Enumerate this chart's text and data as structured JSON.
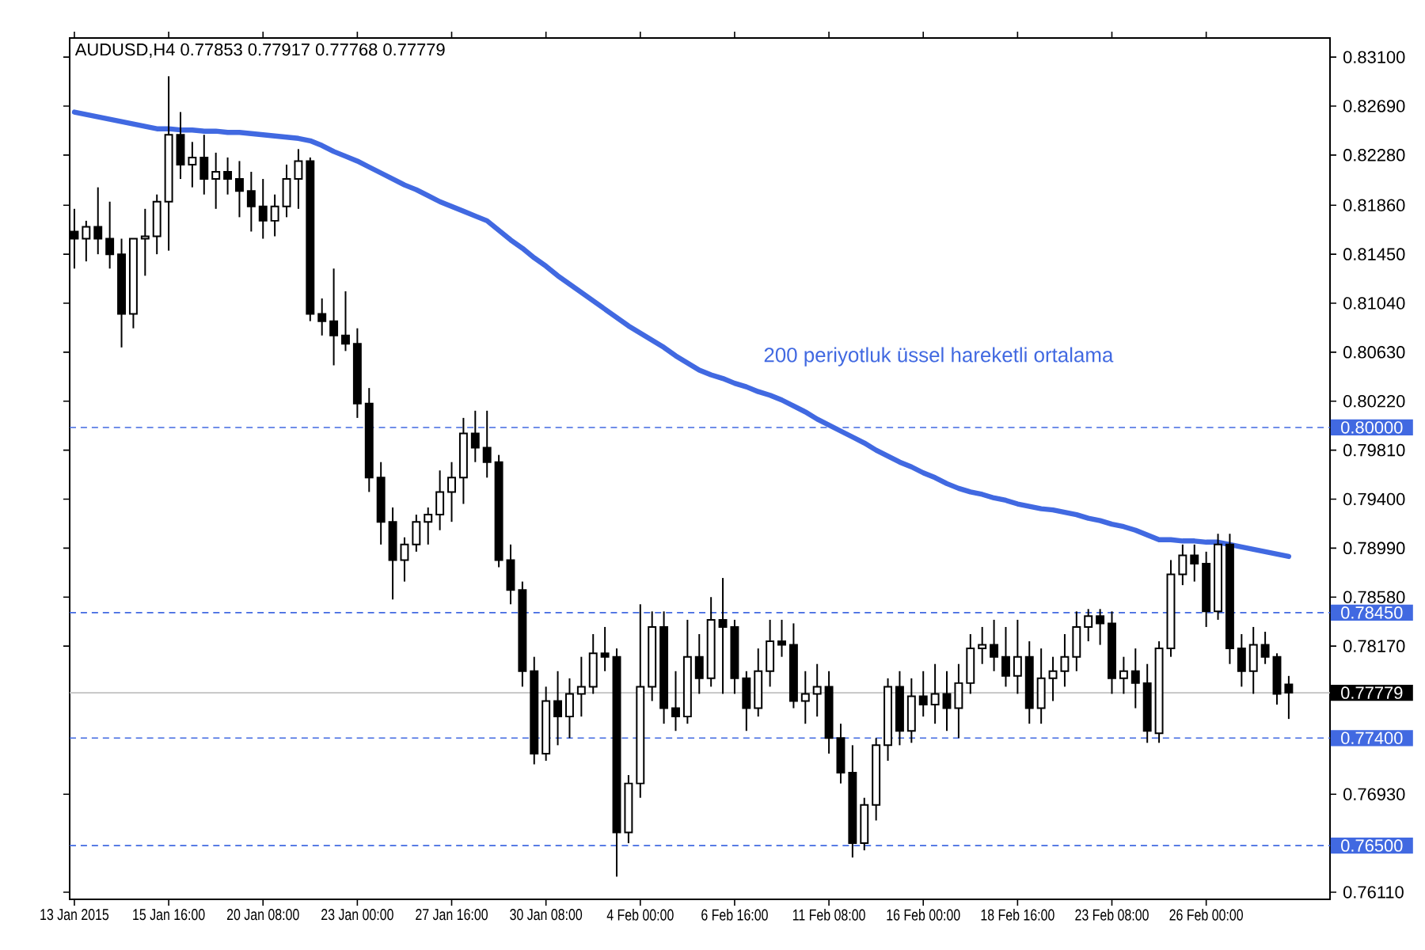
{
  "chart_data": {
    "type": "candlestick",
    "title": "AUDUSD,H4 0.77853 0.77917 0.77768 0.77779",
    "categories": [
      "13 Jan 2015",
      null,
      null,
      null,
      null,
      null,
      null,
      null,
      "15 Jan 16:00",
      null,
      null,
      null,
      null,
      null,
      null,
      null,
      "20 Jan 08:00",
      null,
      null,
      null,
      null,
      null,
      null,
      null,
      "23 Jan 00:00",
      null,
      null,
      null,
      null,
      null,
      null,
      null,
      "27 Jan 16:00",
      null,
      null,
      null,
      null,
      null,
      null,
      null,
      "30 Jan 08:00",
      null,
      null,
      null,
      null,
      null,
      null,
      null,
      "4 Feb 00:00",
      null,
      null,
      null,
      null,
      null,
      null,
      null,
      "6 Feb 16:00",
      null,
      null,
      null,
      null,
      null,
      null,
      null,
      "11 Feb 08:00",
      null,
      null,
      null,
      null,
      null,
      null,
      null,
      "16 Feb 00:00",
      null,
      null,
      null,
      null,
      null,
      null,
      null,
      "18 Feb 16:00",
      null,
      null,
      null,
      null,
      null,
      null,
      null,
      "23 Feb 08:00",
      null,
      null,
      null,
      null,
      null,
      null,
      null,
      "26 Feb 00:00",
      null,
      null,
      null,
      null,
      null,
      null,
      null
    ],
    "ohlc": [
      [
        0.8164,
        0.8183,
        0.8133,
        0.8158
      ],
      [
        0.8158,
        0.8173,
        0.8139,
        0.8168
      ],
      [
        0.8168,
        0.8201,
        0.8145,
        0.8158
      ],
      [
        0.8158,
        0.8189,
        0.8133,
        0.8145
      ],
      [
        0.8145,
        0.8158,
        0.8067,
        0.8095
      ],
      [
        0.8095,
        0.8158,
        0.8083,
        0.8158
      ],
      [
        0.8158,
        0.8183,
        0.8127,
        0.816
      ],
      [
        0.816,
        0.8195,
        0.8145,
        0.8189
      ],
      [
        0.8189,
        0.8294,
        0.8148,
        0.8245
      ],
      [
        0.8245,
        0.8264,
        0.8208,
        0.822
      ],
      [
        0.822,
        0.8239,
        0.8201,
        0.8226
      ],
      [
        0.8226,
        0.8245,
        0.8195,
        0.8208
      ],
      [
        0.8208,
        0.823,
        0.8183,
        0.8214
      ],
      [
        0.8214,
        0.8226,
        0.8195,
        0.8208
      ],
      [
        0.8208,
        0.8223,
        0.8176,
        0.8198
      ],
      [
        0.8198,
        0.8214,
        0.8164,
        0.8185
      ],
      [
        0.8185,
        0.8208,
        0.8158,
        0.8173
      ],
      [
        0.8173,
        0.8195,
        0.816,
        0.8185
      ],
      [
        0.8185,
        0.822,
        0.8176,
        0.8208
      ],
      [
        0.8208,
        0.8233,
        0.8183,
        0.8223
      ],
      [
        0.8223,
        0.8226,
        0.8089,
        0.8095
      ],
      [
        0.8095,
        0.8108,
        0.8077,
        0.8089
      ],
      [
        0.8089,
        0.8133,
        0.8052,
        0.8077
      ],
      [
        0.8077,
        0.8114,
        0.8064,
        0.807
      ],
      [
        0.807,
        0.8083,
        0.8008,
        0.802
      ],
      [
        0.802,
        0.8033,
        0.7946,
        0.7958
      ],
      [
        0.7958,
        0.7971,
        0.7902,
        0.7921
      ],
      [
        0.7921,
        0.7933,
        0.7856,
        0.7889
      ],
      [
        0.7889,
        0.7908,
        0.7871,
        0.7902
      ],
      [
        0.7902,
        0.7927,
        0.7896,
        0.7921
      ],
      [
        0.7921,
        0.7933,
        0.7902,
        0.7927
      ],
      [
        0.7927,
        0.7964,
        0.7914,
        0.7946
      ],
      [
        0.7946,
        0.7971,
        0.7921,
        0.7958
      ],
      [
        0.7958,
        0.8008,
        0.7936,
        0.7995
      ],
      [
        0.7995,
        0.8014,
        0.7971,
        0.7983
      ],
      [
        0.7983,
        0.8014,
        0.7958,
        0.7971
      ],
      [
        0.7971,
        0.7977,
        0.7883,
        0.7889
      ],
      [
        0.7889,
        0.7902,
        0.7852,
        0.7864
      ],
      [
        0.7864,
        0.7871,
        0.7783,
        0.7796
      ],
      [
        0.7796,
        0.7808,
        0.7718,
        0.7727
      ],
      [
        0.7727,
        0.7783,
        0.7721,
        0.7771
      ],
      [
        0.7771,
        0.7796,
        0.7734,
        0.7758
      ],
      [
        0.7758,
        0.779,
        0.774,
        0.7777
      ],
      [
        0.7777,
        0.7808,
        0.7758,
        0.7783
      ],
      [
        0.7783,
        0.7827,
        0.7777,
        0.7811
      ],
      [
        0.7811,
        0.7833,
        0.7796,
        0.7808
      ],
      [
        0.7808,
        0.7815,
        0.7624,
        0.7661
      ],
      [
        0.7661,
        0.7709,
        0.7652,
        0.7702
      ],
      [
        0.7702,
        0.7852,
        0.769,
        0.7783
      ],
      [
        0.7783,
        0.7846,
        0.7771,
        0.7833
      ],
      [
        0.7833,
        0.7846,
        0.7752,
        0.7765
      ],
      [
        0.7765,
        0.7796,
        0.7746,
        0.7758
      ],
      [
        0.7758,
        0.7839,
        0.7752,
        0.7808
      ],
      [
        0.7808,
        0.7827,
        0.7777,
        0.779
      ],
      [
        0.779,
        0.7858,
        0.7783,
        0.7839
      ],
      [
        0.7839,
        0.7874,
        0.7777,
        0.7833
      ],
      [
        0.7833,
        0.7839,
        0.7777,
        0.779
      ],
      [
        0.779,
        0.7796,
        0.7746,
        0.7765
      ],
      [
        0.7765,
        0.7815,
        0.7758,
        0.7796
      ],
      [
        0.7796,
        0.7839,
        0.7783,
        0.7821
      ],
      [
        0.7821,
        0.7839,
        0.7808,
        0.7818
      ],
      [
        0.7818,
        0.7836,
        0.7765,
        0.7771
      ],
      [
        0.7771,
        0.7796,
        0.7752,
        0.7777
      ],
      [
        0.7777,
        0.7802,
        0.7758,
        0.7783
      ],
      [
        0.7783,
        0.7796,
        0.7727,
        0.774
      ],
      [
        0.774,
        0.7752,
        0.7702,
        0.7711
      ],
      [
        0.7711,
        0.7734,
        0.764,
        0.7652
      ],
      [
        0.7652,
        0.769,
        0.7646,
        0.7684
      ],
      [
        0.7684,
        0.774,
        0.7671,
        0.7734
      ],
      [
        0.7734,
        0.779,
        0.7721,
        0.7783
      ],
      [
        0.7783,
        0.7796,
        0.7734,
        0.7746
      ],
      [
        0.7746,
        0.779,
        0.7736,
        0.7775
      ],
      [
        0.7775,
        0.7796,
        0.7758,
        0.7768
      ],
      [
        0.7768,
        0.7802,
        0.7752,
        0.7777
      ],
      [
        0.7777,
        0.7796,
        0.7746,
        0.7765
      ],
      [
        0.7765,
        0.7802,
        0.774,
        0.7786
      ],
      [
        0.7786,
        0.7827,
        0.7777,
        0.7815
      ],
      [
        0.7815,
        0.7833,
        0.7802,
        0.7818
      ],
      [
        0.7818,
        0.7839,
        0.7796,
        0.7808
      ],
      [
        0.7808,
        0.7833,
        0.7783,
        0.7792
      ],
      [
        0.7792,
        0.7839,
        0.7777,
        0.7808
      ],
      [
        0.7808,
        0.7821,
        0.7752,
        0.7765
      ],
      [
        0.7765,
        0.7815,
        0.7752,
        0.779
      ],
      [
        0.779,
        0.7808,
        0.7771,
        0.7796
      ],
      [
        0.7796,
        0.7827,
        0.7783,
        0.7808
      ],
      [
        0.7808,
        0.7846,
        0.7796,
        0.7833
      ],
      [
        0.7833,
        0.7848,
        0.7821,
        0.7842
      ],
      [
        0.7842,
        0.7848,
        0.7818,
        0.7836
      ],
      [
        0.7836,
        0.7846,
        0.7777,
        0.779
      ],
      [
        0.779,
        0.7808,
        0.7777,
        0.7796
      ],
      [
        0.7796,
        0.7815,
        0.7765,
        0.7786
      ],
      [
        0.7786,
        0.7802,
        0.7736,
        0.7746
      ],
      [
        0.7744,
        0.7821,
        0.7736,
        0.7815
      ],
      [
        0.7815,
        0.7889,
        0.7808,
        0.7877
      ],
      [
        0.7877,
        0.7902,
        0.7868,
        0.7893
      ],
      [
        0.7893,
        0.7902,
        0.7871,
        0.7886
      ],
      [
        0.7886,
        0.7896,
        0.7833,
        0.7846
      ],
      [
        0.7846,
        0.7911,
        0.7839,
        0.7902
      ],
      [
        0.7902,
        0.7911,
        0.7802,
        0.7815
      ],
      [
        0.7815,
        0.7827,
        0.7783,
        0.7796
      ],
      [
        0.7796,
        0.7833,
        0.7777,
        0.7818
      ],
      [
        0.7818,
        0.7829,
        0.7802,
        0.7808
      ],
      [
        0.7808,
        0.7811,
        0.7768,
        0.7777
      ],
      [
        0.7785,
        0.7792,
        0.7756,
        0.7778
      ]
    ],
    "series": [
      {
        "type": "line",
        "name": "200 periyotluk üssel hareketli ortalama",
        "color": "#4169e1",
        "line_style": "solid",
        "values": [
          0.8264,
          0.8262,
          0.826,
          0.8258,
          0.8256,
          0.8254,
          0.8252,
          0.825,
          0.825,
          0.8249,
          0.8249,
          0.8248,
          0.8248,
          0.8247,
          0.8247,
          0.8246,
          0.8245,
          0.8244,
          0.8243,
          0.8242,
          0.824,
          0.8236,
          0.8231,
          0.8227,
          0.8223,
          0.8218,
          0.8213,
          0.8208,
          0.8203,
          0.8199,
          0.8194,
          0.8189,
          0.8185,
          0.8181,
          0.8177,
          0.8173,
          0.8165,
          0.8157,
          0.815,
          0.8142,
          0.8135,
          0.8127,
          0.812,
          0.8113,
          0.8106,
          0.8099,
          0.8092,
          0.8085,
          0.8079,
          0.8073,
          0.8067,
          0.806,
          0.8054,
          0.8048,
          0.8044,
          0.8041,
          0.8037,
          0.8034,
          0.803,
          0.8027,
          0.8023,
          0.8018,
          0.8013,
          0.8007,
          0.8002,
          0.7997,
          0.7992,
          0.7987,
          0.7981,
          0.7976,
          0.7971,
          0.7967,
          0.7962,
          0.7958,
          0.7953,
          0.7949,
          0.7946,
          0.7944,
          0.7941,
          0.7939,
          0.7936,
          0.7934,
          0.7932,
          0.7931,
          0.7929,
          0.7927,
          0.7924,
          0.7922,
          0.7919,
          0.7917,
          0.7914,
          0.791,
          0.7906,
          0.7906,
          0.7905,
          0.7905,
          0.7904,
          0.7904,
          0.7902,
          0.79,
          0.7898,
          0.7896,
          0.7894,
          0.7892
        ]
      }
    ],
    "ref_lines": [
      {
        "axis": "y",
        "value": 0.8,
        "label": "0.80000",
        "color": "#4169e1",
        "line_style": "dashed"
      },
      {
        "axis": "y",
        "value": 0.7845,
        "label": "0.78450",
        "color": "#4169e1",
        "line_style": "dashed"
      },
      {
        "axis": "y",
        "value": 0.774,
        "label": "0.77400",
        "color": "#4169e1",
        "line_style": "dashed"
      },
      {
        "axis": "y",
        "value": 0.765,
        "label": "0.76500",
        "color": "#4169e1",
        "line_style": "dashed"
      },
      {
        "axis": "y",
        "value": 0.77779,
        "label": "0.77779",
        "color": "#c0c0c0",
        "line_style": "solid"
      }
    ],
    "ylim": [
      0.7605,
      0.8326
    ],
    "yticks": [
      {
        "value": 0.831,
        "label": "0.83100"
      },
      {
        "value": 0.8269,
        "label": "0.82690"
      },
      {
        "value": 0.8228,
        "label": "0.82280"
      },
      {
        "value": 0.8186,
        "label": "0.81860"
      },
      {
        "value": 0.8145,
        "label": "0.81450"
      },
      {
        "value": 0.8104,
        "label": "0.81040"
      },
      {
        "value": 0.8063,
        "label": "0.80630"
      },
      {
        "value": 0.8022,
        "label": "0.80220"
      },
      {
        "value": 0.7981,
        "label": "0.79810"
      },
      {
        "value": 0.794,
        "label": "0.79400"
      },
      {
        "value": 0.7899,
        "label": "0.78990"
      },
      {
        "value": 0.7858,
        "label": "0.78580"
      },
      {
        "value": 0.7817,
        "label": "0.78170"
      },
      {
        "value": 0.7693,
        "label": "0.76930"
      },
      {
        "value": 0.7611,
        "label": "0.76110"
      }
    ],
    "grid": false
  }
}
